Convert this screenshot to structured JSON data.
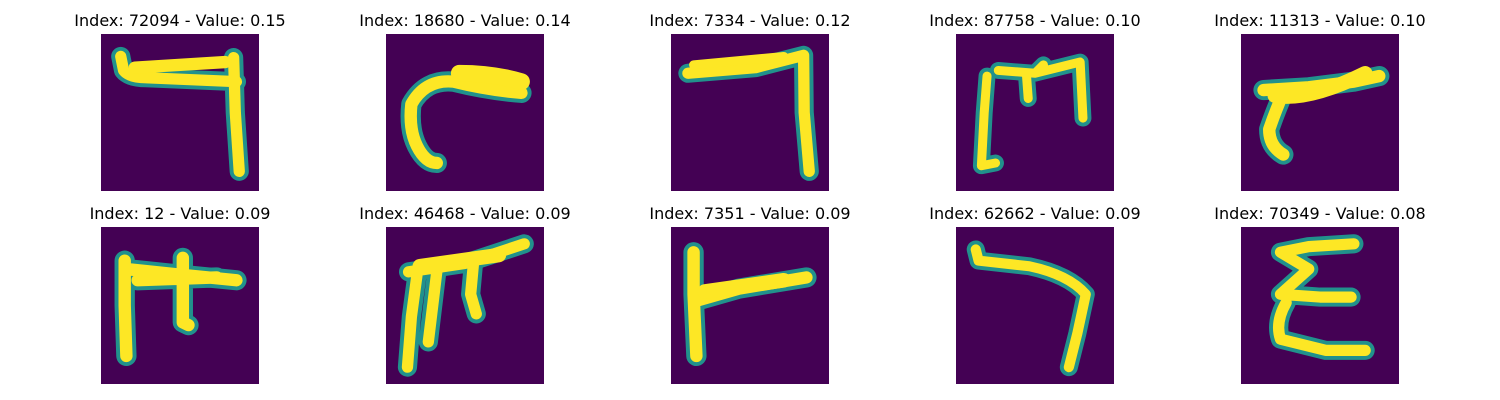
{
  "colors": {
    "background": "#440154",
    "stroke_core": "#fde725",
    "stroke_mid": "#a0da39",
    "stroke_edge": "#21918c",
    "stroke_faint": "#31688e"
  },
  "panels": [
    {
      "title": "Index: 72094 - Value: 0.15",
      "glyph": "reverse-seven-hook"
    },
    {
      "title": "Index: 18680 - Value: 0.14",
      "glyph": "curved-stroke"
    },
    {
      "title": "Index: 7334 - Value: 0.12",
      "glyph": "reverse-seven"
    },
    {
      "title": "Index: 87758 - Value: 0.10",
      "glyph": "three-prong"
    },
    {
      "title": "Index: 11313 - Value: 0.10",
      "glyph": "slanted-stroke"
    },
    {
      "title": "Index: 12 - Value: 0.09",
      "glyph": "prong-left"
    },
    {
      "title": "Index: 46468 - Value: 0.09",
      "glyph": "prong-slanted"
    },
    {
      "title": "Index: 7351 - Value: 0.09",
      "glyph": "flag"
    },
    {
      "title": "Index: 62662 - Value: 0.09",
      "glyph": "reverse-seven-curve"
    },
    {
      "title": "Index: 70349 - Value: 0.08",
      "glyph": "epsilon"
    }
  ]
}
